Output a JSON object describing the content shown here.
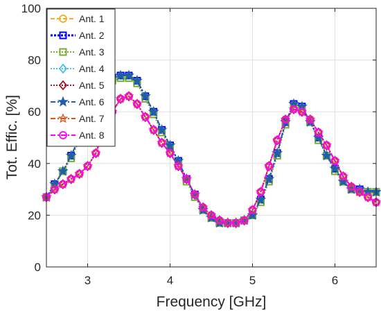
{
  "chart_data": {
    "type": "line",
    "xlabel": "Frequency [GHz]",
    "ylabel": "Tot. Effic. [%]",
    "xlim": [
      2.5,
      6.5
    ],
    "ylim": [
      0,
      100
    ],
    "xticks": [
      3,
      4,
      5,
      6
    ],
    "yticks": [
      0,
      20,
      40,
      60,
      80,
      100
    ],
    "xtick_labels": [
      "3",
      "4",
      "5",
      "6"
    ],
    "ytick_labels": [
      "0",
      "20",
      "40",
      "60",
      "80",
      "100"
    ],
    "grid": true,
    "legend_position": "top-left",
    "x": [
      2.5,
      2.6,
      2.7,
      2.8,
      2.9,
      3.0,
      3.1,
      3.2,
      3.3,
      3.4,
      3.5,
      3.6,
      3.7,
      3.8,
      3.9,
      4.0,
      4.1,
      4.2,
      4.3,
      4.4,
      4.5,
      4.6,
      4.7,
      4.8,
      4.9,
      5.0,
      5.1,
      5.2,
      5.3,
      5.4,
      5.5,
      5.6,
      5.7,
      5.8,
      5.9,
      6.0,
      6.1,
      6.2,
      6.3,
      6.4,
      6.5
    ],
    "series": [
      {
        "name": "Ant. 1",
        "color": "#EDB120",
        "marker": "circle",
        "dash": "6,3",
        "values": [
          27,
          30,
          32,
          34,
          36,
          39,
          44,
          53,
          60,
          65,
          66,
          63,
          58,
          53,
          48,
          44,
          39,
          34,
          28,
          23,
          20,
          18,
          17,
          17,
          18,
          22,
          29,
          39,
          49,
          57,
          61,
          60,
          57,
          52,
          47,
          41,
          35,
          31,
          29,
          27,
          25
        ]
      },
      {
        "name": "Ant. 2",
        "color": "#0000FF",
        "marker": "square",
        "dash": "3,2",
        "values": [
          27,
          32,
          37,
          43,
          50,
          58,
          65,
          70,
          73,
          74,
          74,
          72,
          66,
          60,
          53,
          47,
          41,
          34,
          28,
          22,
          19,
          17,
          17,
          17,
          18,
          20,
          26,
          34,
          44,
          56,
          63,
          62,
          56,
          50,
          43,
          38,
          33,
          30,
          30,
          29,
          29
        ]
      },
      {
        "name": "Ant. 3",
        "color": "#77AC30",
        "marker": "square",
        "dash": "2,2",
        "values": [
          27,
          31,
          37,
          42,
          49,
          57,
          64,
          69,
          72,
          73,
          73,
          71,
          65,
          59,
          52,
          46,
          40,
          33,
          27,
          22,
          19,
          17,
          17,
          17,
          18,
          20,
          25,
          33,
          43,
          55,
          62,
          61,
          56,
          49,
          43,
          37,
          33,
          30,
          29,
          29,
          29
        ]
      },
      {
        "name": "Ant. 4",
        "color": "#4DBEEE",
        "marker": "diamond",
        "dash": "2,2",
        "values": [
          27,
          30,
          32,
          34,
          36,
          39,
          44,
          53,
          60,
          65,
          66,
          63,
          58,
          53,
          48,
          44,
          39,
          34,
          28,
          23,
          20,
          18,
          17,
          17,
          18,
          22,
          29,
          39,
          49,
          57,
          61,
          60,
          57,
          52,
          47,
          41,
          35,
          31,
          29,
          27,
          25
        ]
      },
      {
        "name": "Ant. 5",
        "color": "#A2142F",
        "marker": "diamond",
        "dash": "2,2",
        "values": [
          27,
          30,
          32,
          34,
          36,
          39,
          44,
          53,
          60,
          65,
          66,
          63,
          58,
          53,
          48,
          44,
          39,
          34,
          28,
          23,
          20,
          18,
          17,
          17,
          18,
          22,
          29,
          39,
          49,
          57,
          61,
          60,
          57,
          52,
          47,
          41,
          35,
          31,
          29,
          27,
          25
        ]
      },
      {
        "name": "Ant. 6",
        "color": "#1F5FA8",
        "marker": "star",
        "dash": "7,3,2,3",
        "values": [
          27,
          32,
          37,
          43,
          50,
          58,
          65,
          70,
          73,
          74,
          74,
          72,
          66,
          60,
          53,
          47,
          41,
          34,
          28,
          22,
          19,
          17,
          17,
          17,
          18,
          20,
          26,
          34,
          44,
          56,
          63,
          62,
          56,
          50,
          43,
          38,
          33,
          30,
          30,
          29,
          29
        ]
      },
      {
        "name": "Ant. 7",
        "color": "#D95319",
        "marker": "pentagram",
        "dash": "7,3,2,3",
        "values": [
          27,
          30,
          32,
          34,
          36,
          39,
          44,
          53,
          60,
          65,
          66,
          63,
          58,
          53,
          48,
          44,
          39,
          34,
          28,
          23,
          20,
          18,
          17,
          17,
          18,
          22,
          29,
          39,
          49,
          57,
          61,
          60,
          57,
          52,
          47,
          41,
          35,
          31,
          29,
          27,
          25
        ]
      },
      {
        "name": "Ant. 8",
        "color": "#FF00FF",
        "marker": "circle",
        "dash": "7,3,2,3",
        "values": [
          27,
          30,
          32,
          34,
          36,
          39,
          44,
          53,
          60,
          65,
          66,
          63,
          58,
          53,
          48,
          44,
          39,
          34,
          28,
          23,
          20,
          18,
          17,
          17,
          18,
          22,
          29,
          39,
          49,
          57,
          61,
          60,
          57,
          52,
          47,
          41,
          35,
          31,
          29,
          27,
          25
        ]
      }
    ]
  }
}
